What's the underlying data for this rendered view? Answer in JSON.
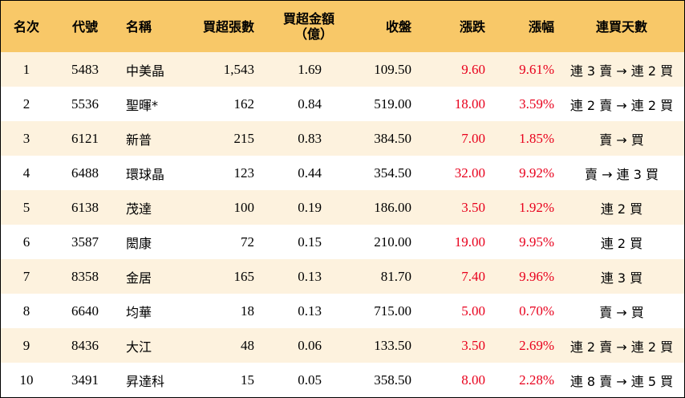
{
  "headers": {
    "rank": "名次",
    "code": "代號",
    "name": "名稱",
    "net_lots": "買超張數",
    "net_amount_line1": "買超金額",
    "net_amount_line2": "（億）",
    "close": "收盤",
    "change": "漲跌",
    "pct": "漲幅",
    "streak": "連買天數"
  },
  "rows": [
    {
      "rank": "1",
      "code": "5483",
      "name": "中美晶",
      "net_lots": "1,543",
      "net_amount": "1.69",
      "close": "109.50",
      "change": "9.60",
      "pct": "9.61%",
      "streak": "連 3 賣 → 連 2 買"
    },
    {
      "rank": "2",
      "code": "5536",
      "name": "聖暉*",
      "net_lots": "162",
      "net_amount": "0.84",
      "close": "519.00",
      "change": "18.00",
      "pct": "3.59%",
      "streak": "連 2 賣 → 連 2 買"
    },
    {
      "rank": "3",
      "code": "6121",
      "name": "新普",
      "net_lots": "215",
      "net_amount": "0.83",
      "close": "384.50",
      "change": "7.00",
      "pct": "1.85%",
      "streak": "賣 → 買"
    },
    {
      "rank": "4",
      "code": "6488",
      "name": "環球晶",
      "net_lots": "123",
      "net_amount": "0.44",
      "close": "354.50",
      "change": "32.00",
      "pct": "9.92%",
      "streak": "賣 → 連 3 買"
    },
    {
      "rank": "5",
      "code": "6138",
      "name": "茂達",
      "net_lots": "100",
      "net_amount": "0.19",
      "close": "186.00",
      "change": "3.50",
      "pct": "1.92%",
      "streak": "連 2 買"
    },
    {
      "rank": "6",
      "code": "3587",
      "name": "閎康",
      "net_lots": "72",
      "net_amount": "0.15",
      "close": "210.00",
      "change": "19.00",
      "pct": "9.95%",
      "streak": "連 2 買"
    },
    {
      "rank": "7",
      "code": "8358",
      "name": "金居",
      "net_lots": "165",
      "net_amount": "0.13",
      "close": "81.70",
      "change": "7.40",
      "pct": "9.96%",
      "streak": "連 3 買"
    },
    {
      "rank": "8",
      "code": "6640",
      "name": "均華",
      "net_lots": "18",
      "net_amount": "0.13",
      "close": "715.00",
      "change": "5.00",
      "pct": "0.70%",
      "streak": "賣 → 買"
    },
    {
      "rank": "9",
      "code": "8436",
      "name": "大江",
      "net_lots": "48",
      "net_amount": "0.06",
      "close": "133.50",
      "change": "3.50",
      "pct": "2.69%",
      "streak": "連 2 賣 → 連 2 買"
    },
    {
      "rank": "10",
      "code": "3491",
      "name": "昇達科",
      "net_lots": "15",
      "net_amount": "0.05",
      "close": "358.50",
      "change": "8.00",
      "pct": "2.28%",
      "streak": "連 8 賣 → 連 5 買"
    }
  ],
  "colors": {
    "header_bg": "#f8c868",
    "odd_row_bg": "#fdf2de",
    "even_row_bg": "#ffffff",
    "rise": "#e8001c"
  }
}
